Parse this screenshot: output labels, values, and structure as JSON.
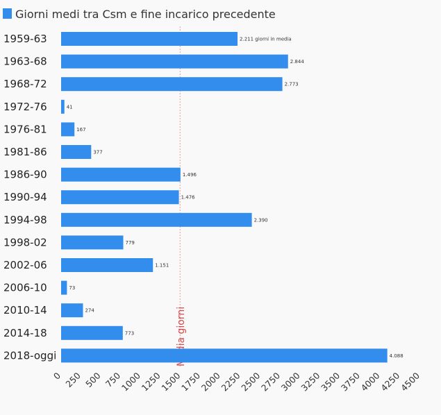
{
  "chart_data": {
    "type": "bar",
    "orientation": "horizontal",
    "categories": [
      "1959-63",
      "1963-68",
      "1968-72",
      "1972-76",
      "1976-81",
      "1981-86",
      "1986-90",
      "1990-94",
      "1994-98",
      "1998-02",
      "2002-06",
      "2006-10",
      "2010-14",
      "2014-18",
      "2018-oggi"
    ],
    "series": [
      {
        "name": "Giorni medi tra Csm e fine incarico precedente",
        "values": [
          2211,
          2844,
          2773,
          41,
          167,
          377,
          1496,
          1476,
          2390,
          779,
          1151,
          73,
          274,
          773,
          4088
        ],
        "labels": [
          "2.211 giorni in media",
          "2.844",
          "2.773",
          "41",
          "167",
          "377",
          "1.496",
          "1.476",
          "2.390",
          "779",
          "1.151",
          "73",
          "274",
          "773",
          "4.088"
        ]
      }
    ],
    "xlim": [
      0,
      4500
    ],
    "xticks": [
      0,
      250,
      500,
      750,
      1000,
      1250,
      1500,
      1750,
      2000,
      2250,
      2500,
      2750,
      3000,
      3250,
      3500,
      3750,
      4000,
      4250,
      4500
    ],
    "reference_line": {
      "value": 1490,
      "label": "Media giorni"
    },
    "legend_position": "top-left",
    "grid": false,
    "colors": {
      "bar": "#338ded",
      "reference": "#d62728",
      "legend": "#338ded",
      "background": "#f9f9f9"
    }
  }
}
